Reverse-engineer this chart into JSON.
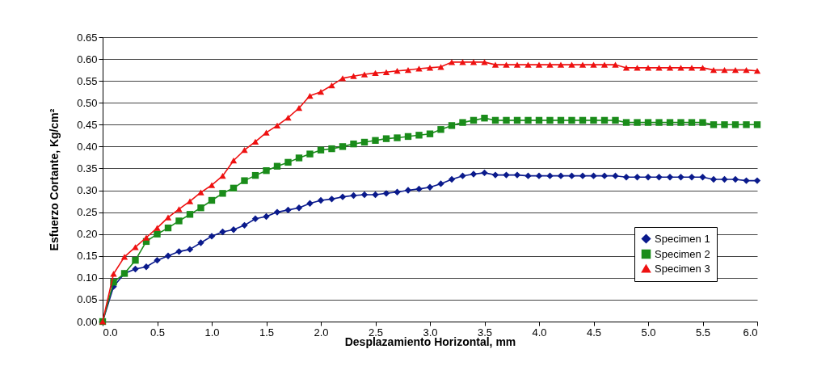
{
  "chart_data": {
    "type": "line",
    "xlabel": "Desplazamiento Horizontal, mm",
    "ylabel": "Esfuerzo Cortante, Kg/cm²",
    "x": [
      0,
      0.1,
      0.2,
      0.3,
      0.4,
      0.5,
      0.6,
      0.7,
      0.8,
      0.9,
      1.0,
      1.1,
      1.2,
      1.3,
      1.4,
      1.5,
      1.6,
      1.7,
      1.8,
      1.9,
      2.0,
      2.1,
      2.2,
      2.3,
      2.4,
      2.5,
      2.6,
      2.7,
      2.8,
      2.9,
      3.0,
      3.1,
      3.2,
      3.3,
      3.4,
      3.5,
      3.6,
      3.7,
      3.8,
      3.9,
      4.0,
      4.1,
      4.2,
      4.3,
      4.4,
      4.5,
      4.6,
      4.7,
      4.8,
      4.9,
      5.0,
      5.1,
      5.2,
      5.3,
      5.4,
      5.5,
      5.6,
      5.7,
      5.8,
      5.9,
      6.0
    ],
    "series": [
      {
        "name": "Specimen 1",
        "color": "#0a1a8c",
        "marker": "diamond",
        "values": [
          0,
          0.08,
          0.11,
          0.12,
          0.125,
          0.14,
          0.15,
          0.16,
          0.165,
          0.18,
          0.195,
          0.205,
          0.21,
          0.22,
          0.235,
          0.24,
          0.25,
          0.255,
          0.26,
          0.27,
          0.277,
          0.28,
          0.285,
          0.288,
          0.29,
          0.29,
          0.293,
          0.296,
          0.3,
          0.303,
          0.307,
          0.315,
          0.325,
          0.333,
          0.337,
          0.34,
          0.335,
          0.335,
          0.335,
          0.333,
          0.333,
          0.333,
          0.333,
          0.333,
          0.333,
          0.333,
          0.333,
          0.333,
          0.33,
          0.33,
          0.33,
          0.33,
          0.33,
          0.33,
          0.33,
          0.33,
          0.325,
          0.325,
          0.325,
          0.322,
          0.322
        ]
      },
      {
        "name": "Specimen 2",
        "color": "#1a8c1a",
        "marker": "square",
        "values": [
          0,
          0.09,
          0.11,
          0.14,
          0.183,
          0.2,
          0.214,
          0.23,
          0.245,
          0.26,
          0.277,
          0.293,
          0.305,
          0.322,
          0.334,
          0.345,
          0.355,
          0.364,
          0.374,
          0.383,
          0.392,
          0.395,
          0.4,
          0.406,
          0.41,
          0.414,
          0.418,
          0.42,
          0.423,
          0.426,
          0.429,
          0.439,
          0.448,
          0.455,
          0.46,
          0.465,
          0.46,
          0.46,
          0.46,
          0.46,
          0.46,
          0.46,
          0.46,
          0.46,
          0.46,
          0.46,
          0.46,
          0.46,
          0.455,
          0.455,
          0.455,
          0.455,
          0.455,
          0.455,
          0.455,
          0.455,
          0.45,
          0.45,
          0.45,
          0.45,
          0.45
        ]
      },
      {
        "name": "Specimen 3",
        "color": "#ee1111",
        "marker": "triangle",
        "values": [
          0,
          0.109,
          0.148,
          0.17,
          0.192,
          0.214,
          0.238,
          0.257,
          0.275,
          0.295,
          0.312,
          0.333,
          0.368,
          0.392,
          0.411,
          0.432,
          0.448,
          0.466,
          0.488,
          0.516,
          0.525,
          0.54,
          0.556,
          0.561,
          0.565,
          0.568,
          0.57,
          0.573,
          0.575,
          0.578,
          0.58,
          0.582,
          0.593,
          0.593,
          0.593,
          0.593,
          0.587,
          0.587,
          0.587,
          0.587,
          0.587,
          0.587,
          0.587,
          0.587,
          0.587,
          0.587,
          0.587,
          0.587,
          0.58,
          0.58,
          0.58,
          0.58,
          0.58,
          0.58,
          0.58,
          0.58,
          0.575,
          0.575,
          0.575,
          0.575,
          0.573
        ]
      }
    ],
    "xlim": [
      0,
      6
    ],
    "xticks": [
      {
        "value": 0,
        "label": "0.0"
      },
      {
        "value": 0.5,
        "label": "0.5"
      },
      {
        "value": 1,
        "label": "1.0"
      },
      {
        "value": 1.5,
        "label": "1.5"
      },
      {
        "value": 2,
        "label": "2.0"
      },
      {
        "value": 2.5,
        "label": "2.5"
      },
      {
        "value": 3,
        "label": "3.0"
      },
      {
        "value": 3.5,
        "label": "3.5"
      },
      {
        "value": 4,
        "label": "4.0"
      },
      {
        "value": 4.5,
        "label": "4.5"
      },
      {
        "value": 5,
        "label": "5.0"
      },
      {
        "value": 5.5,
        "label": "5.5"
      },
      {
        "value": 6,
        "label": "6.0"
      }
    ],
    "ylim": [
      0,
      0.65
    ],
    "yticks": [
      {
        "value": 0,
        "label": "0.00"
      },
      {
        "value": 0.05,
        "label": "0.05"
      },
      {
        "value": 0.1,
        "label": "0.10"
      },
      {
        "value": 0.15,
        "label": "0.15"
      },
      {
        "value": 0.2,
        "label": "0.20"
      },
      {
        "value": 0.25,
        "label": "0.25"
      },
      {
        "value": 0.3,
        "label": "0.30"
      },
      {
        "value": 0.35,
        "label": "0.35"
      },
      {
        "value": 0.4,
        "label": "0.40"
      },
      {
        "value": 0.45,
        "label": "0.45"
      },
      {
        "value": 0.5,
        "label": "0.50"
      },
      {
        "value": 0.55,
        "label": "0.55"
      },
      {
        "value": 0.6,
        "label": "0.60"
      },
      {
        "value": 0.65,
        "label": "0.65"
      }
    ],
    "grid": "y",
    "legend": "bottom right"
  }
}
